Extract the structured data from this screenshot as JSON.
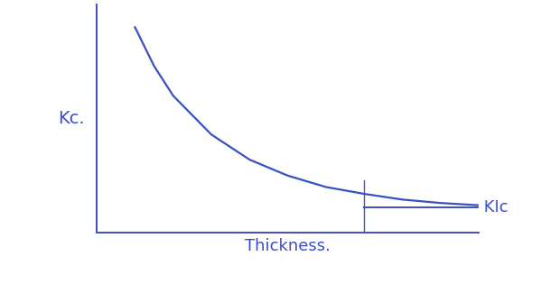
{
  "chart_data": {
    "type": "line",
    "y_label": "Kc.",
    "x_label": "Thickness.",
    "x": [
      1,
      1.5,
      2,
      3,
      4,
      5,
      6,
      7,
      8,
      9,
      10
    ],
    "values": [
      9.0,
      7.3,
      6.0,
      4.3,
      3.2,
      2.5,
      2.0,
      1.7,
      1.45,
      1.3,
      1.2
    ],
    "color": "#3a4fc4",
    "asymptote": {
      "label": "KIc",
      "value": 1.1,
      "start": 7.0
    },
    "reference_x": 7.0,
    "xlim": [
      0,
      10
    ],
    "ylim": [
      0,
      10
    ],
    "xticks": [],
    "yticks": [],
    "tick_labels": false,
    "grid": false
  }
}
